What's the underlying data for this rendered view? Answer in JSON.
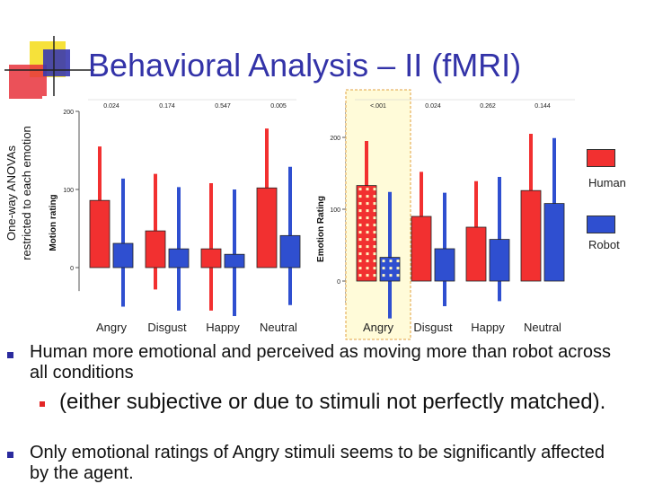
{
  "slide": {
    "title": "Behavioral Analysis – II (fMRI)",
    "side_label_line1": "One-way ANOVAs",
    "side_label_line2": "restricted to each emotion",
    "legend": [
      {
        "label": "Human",
        "color": "#f23030"
      },
      {
        "label": "Robot",
        "color": "#2f4fd0"
      }
    ],
    "bullets": [
      {
        "level": 1,
        "text": "Human more emotional and perceived as moving more than robot across all conditions"
      },
      {
        "level": 2,
        "text": "(either subjective or due to stimuli not perfectly matched)."
      },
      {
        "level": 1,
        "text": "Only emotional ratings of Angry stimuli seems to be significantly affected by the agent."
      }
    ]
  },
  "chart_data": [
    {
      "type": "bar",
      "ylabel": "Motion rating",
      "ylim": [
        -30,
        200
      ],
      "yticks": [
        0,
        100,
        200
      ],
      "categories": [
        "Angry",
        "Disgust",
        "Happy",
        "Neutral"
      ],
      "p_values": [
        "0.024",
        "0.174",
        "0.547",
        "0.005"
      ],
      "series": [
        {
          "name": "Human",
          "values": [
            86,
            47,
            24,
            102
          ],
          "ci_low": [
            0,
            -28,
            -55,
            0
          ],
          "ci_high": [
            155,
            120,
            108,
            178
          ]
        },
        {
          "name": "Robot",
          "values": [
            31,
            24,
            17,
            41
          ],
          "ci_low": [
            -50,
            -55,
            -62,
            -48
          ],
          "ci_high": [
            114,
            103,
            100,
            129
          ]
        }
      ]
    },
    {
      "type": "bar",
      "ylabel": "Emotion Rating",
      "ylim": [
        -30,
        250
      ],
      "yticks": [
        0,
        100,
        200
      ],
      "categories": [
        "Angry",
        "Disgust",
        "Happy",
        "Neutral"
      ],
      "p_values": [
        "<.001",
        "0.024",
        "0.262",
        "0.144"
      ],
      "highlighted_category": "Angry",
      "series": [
        {
          "name": "Human",
          "values": [
            133,
            90,
            75,
            126
          ],
          "ci_low": [
            0,
            0,
            0,
            0
          ],
          "ci_high": [
            195,
            152,
            139,
            205
          ]
        },
        {
          "name": "Robot",
          "values": [
            33,
            45,
            58,
            108
          ],
          "ci_low": [
            -52,
            -35,
            -28,
            0
          ],
          "ci_high": [
            124,
            123,
            145,
            199
          ]
        }
      ]
    }
  ]
}
